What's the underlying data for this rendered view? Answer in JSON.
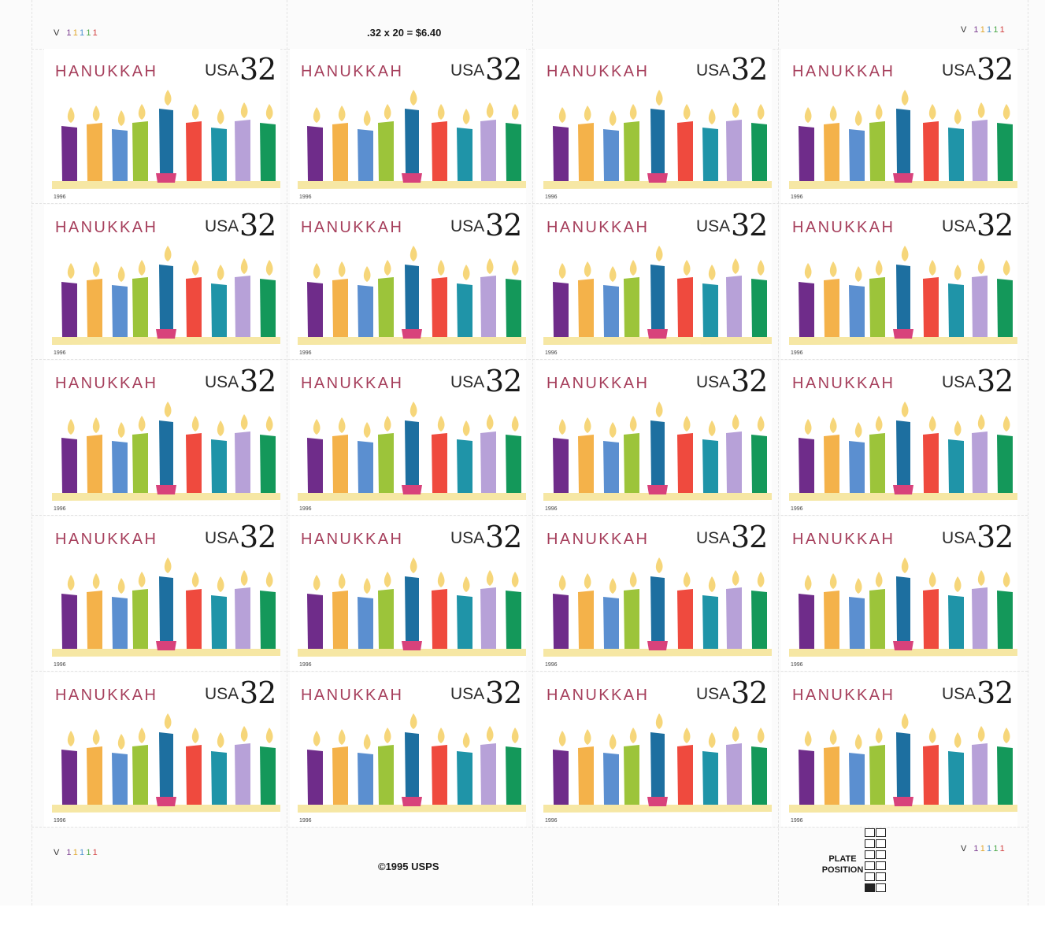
{
  "sheet": {
    "stamp_title": "HANUKKAH",
    "stamp_country": "USA",
    "stamp_value": "32",
    "stamp_year": "1996",
    "rows": 5,
    "cols": 4,
    "price_line": ".32 x 20 = $6.40",
    "copyright": "©1995 USPS",
    "plate_number_prefix": "V",
    "plate_number_digits": [
      "1",
      "1",
      "1",
      "1",
      "1"
    ],
    "plate_position_label": "PLATE POSITION"
  },
  "candle_colors": [
    "#6f2c8a",
    "#f4b24a",
    "#5b8fd0",
    "#9cc43a",
    "#1d6fa0",
    "#ef4a3e",
    "#1f94a8",
    "#b7a1d8",
    "#14985a"
  ],
  "colors": {
    "flame": "#f6d67a",
    "base": "#f6e7a4",
    "cup": "#d8427b",
    "title": "#a63f5c"
  }
}
